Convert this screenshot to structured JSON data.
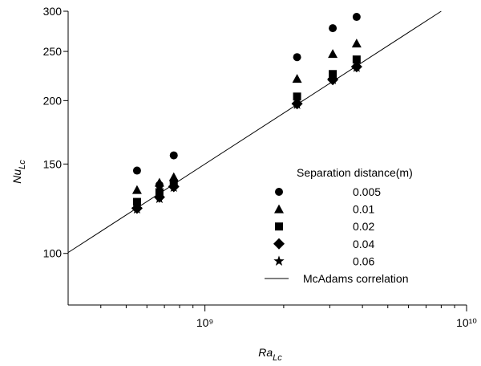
{
  "chart_data": {
    "type": "scatter",
    "xlabel": "Ra",
    "xlabel_sub": "Lc",
    "ylabel": "Nu",
    "ylabel_sub": "Lc",
    "xscale": "log",
    "yscale": "log",
    "xlim": [
      300000000,
      10000000000
    ],
    "ylim": [
      80,
      300
    ],
    "xticks": [
      {
        "value": 1000000000,
        "label": "10⁹"
      },
      {
        "value": 10000000000,
        "label": "10¹⁰"
      }
    ],
    "xminor_ticks": [
      400000000,
      500000000,
      600000000,
      700000000,
      800000000,
      900000000,
      2000000000,
      3000000000,
      4000000000,
      5000000000,
      6000000000,
      7000000000,
      8000000000,
      9000000000
    ],
    "yticks": [
      100,
      150,
      200,
      250,
      300
    ],
    "legend_title": "Separation distance(m)",
    "legend_position": "lower right",
    "x": [
      550000000,
      670000000,
      760000000,
      2250000000,
      3080000000,
      3800000000
    ],
    "series": [
      {
        "name": "0.005",
        "marker": "circle",
        "color": "#000000",
        "values": [
          145.6,
          136.4,
          156,
          243.6,
          277.8,
          292.4
        ]
      },
      {
        "name": "0.01",
        "marker": "triangle",
        "color": "#000000",
        "values": [
          133.4,
          137.9,
          141.4,
          220.8,
          247.2,
          259.2
        ]
      },
      {
        "name": "0.02",
        "marker": "square",
        "color": "#000000",
        "values": [
          126.3,
          132,
          137.4,
          203.7,
          225.6,
          241
        ]
      },
      {
        "name": "0.04",
        "marker": "diamond",
        "color": "#000000",
        "values": [
          122.7,
          129.1,
          135.4,
          197.2,
          219.9,
          233.2
        ]
      },
      {
        "name": "0.06",
        "marker": "star",
        "color": "#000000",
        "values": [
          122.3,
          128.2,
          134.9,
          196.5,
          219.9,
          232.4
        ]
      }
    ],
    "lines": [
      {
        "name": "McAdams correlation",
        "color": "#000000",
        "x": [
          300000000,
          8000000000
        ],
        "values": [
          100.4,
          300
        ]
      }
    ]
  }
}
